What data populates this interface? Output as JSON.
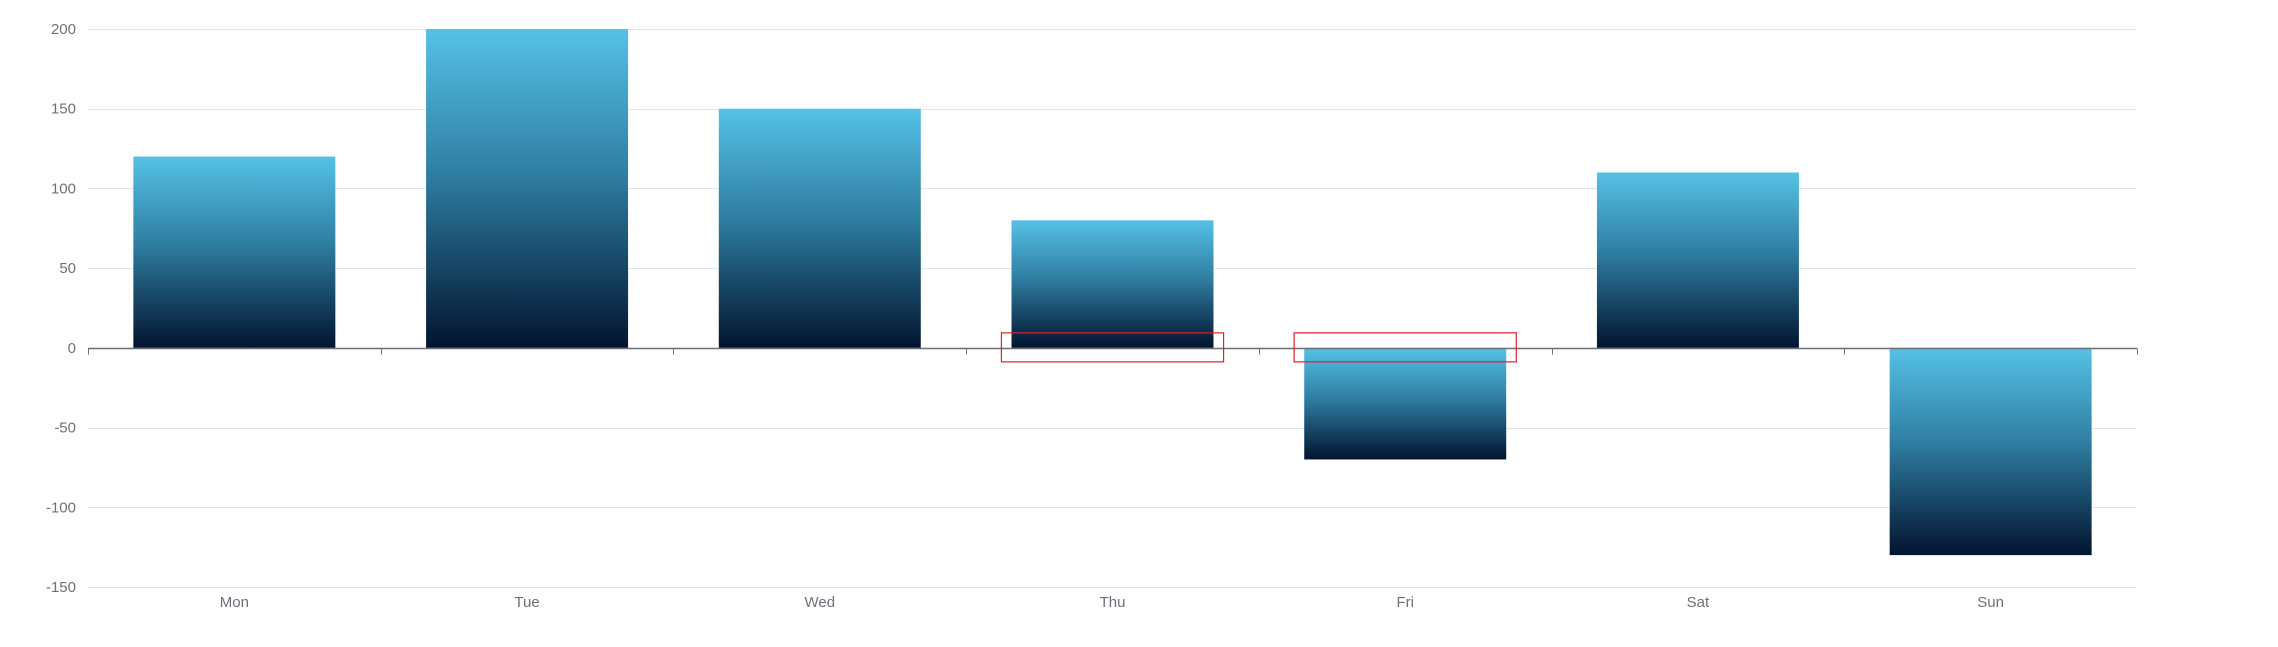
{
  "chart_data": {
    "type": "bar",
    "categories": [
      "Mon",
      "Tue",
      "Wed",
      "Thu",
      "Fri",
      "Sat",
      "Sun"
    ],
    "values": [
      120,
      200,
      150,
      80,
      -70,
      110,
      -130
    ],
    "ylim": [
      -150,
      200
    ],
    "yticks": [
      -150,
      -100,
      -50,
      0,
      50,
      100,
      150,
      200
    ],
    "ytick_labels": [
      "-150",
      "-100",
      "-50",
      "0",
      "50",
      "100",
      "150",
      "200"
    ],
    "grid": true,
    "colors": {
      "bar_top": "#56c1e6",
      "bar_mid": "#2f7fa3",
      "bar_bottom": "#02142f",
      "axis": "#6e7079",
      "grid": "#e0e6f1",
      "highlight_box": "#e0202a"
    },
    "highlighted_categories": [
      "Thu",
      "Fri"
    ]
  }
}
